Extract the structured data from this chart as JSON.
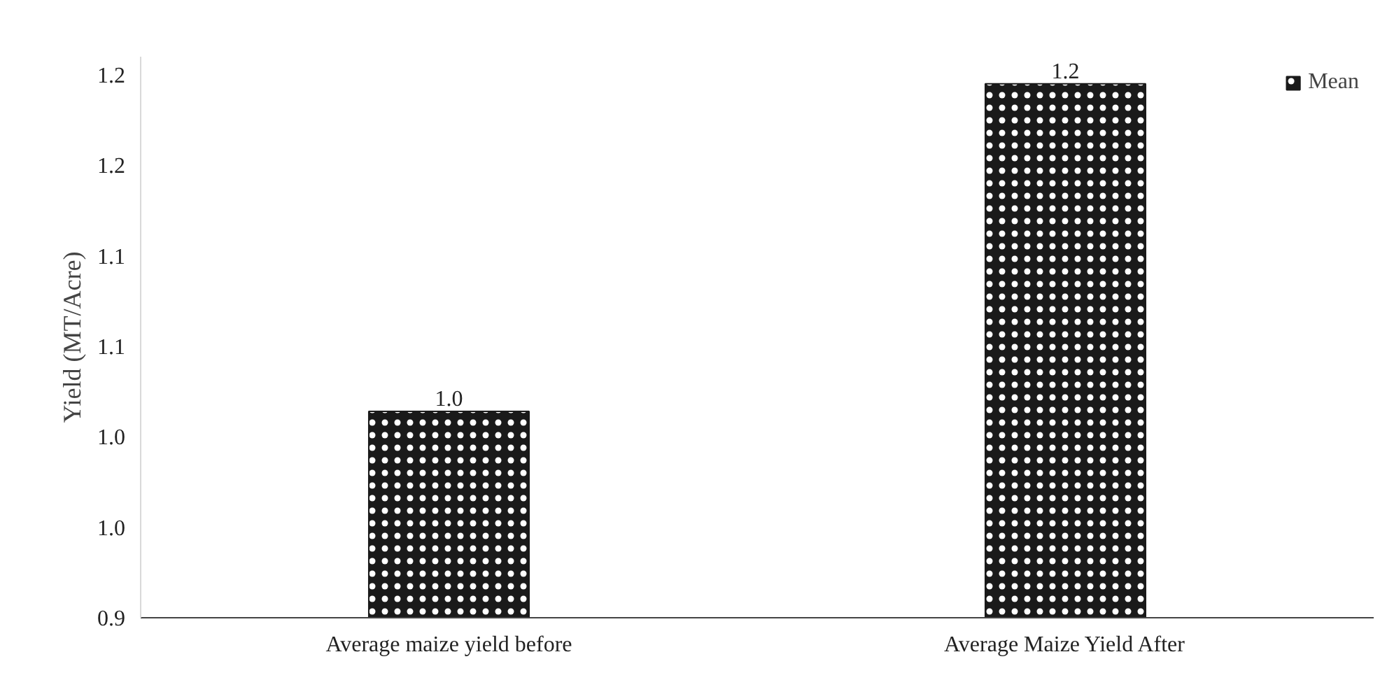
{
  "chart_data": {
    "type": "bar",
    "ylabel": "Yield (MT/Acre)",
    "categories": [
      "Average maize yield before",
      "Average Maize Yield After"
    ],
    "series": [
      {
        "name": "Mean",
        "color": "#1a1a1a",
        "values": [
          1.014,
          1.195
        ],
        "value_labels": [
          "1.0",
          "1.2"
        ]
      }
    ],
    "ylim": [
      0.9,
      1.21
    ],
    "yticks": [
      {
        "value": 0.9,
        "label": "0.9"
      },
      {
        "value": 0.95,
        "label": "1.0"
      },
      {
        "value": 1.0,
        "label": "1.0"
      },
      {
        "value": 1.05,
        "label": "1.1"
      },
      {
        "value": 1.1,
        "label": "1.1"
      },
      {
        "value": 1.15,
        "label": "1.2"
      },
      {
        "value": 1.2,
        "label": "1.2"
      }
    ],
    "grid": false,
    "legend": "top right"
  }
}
